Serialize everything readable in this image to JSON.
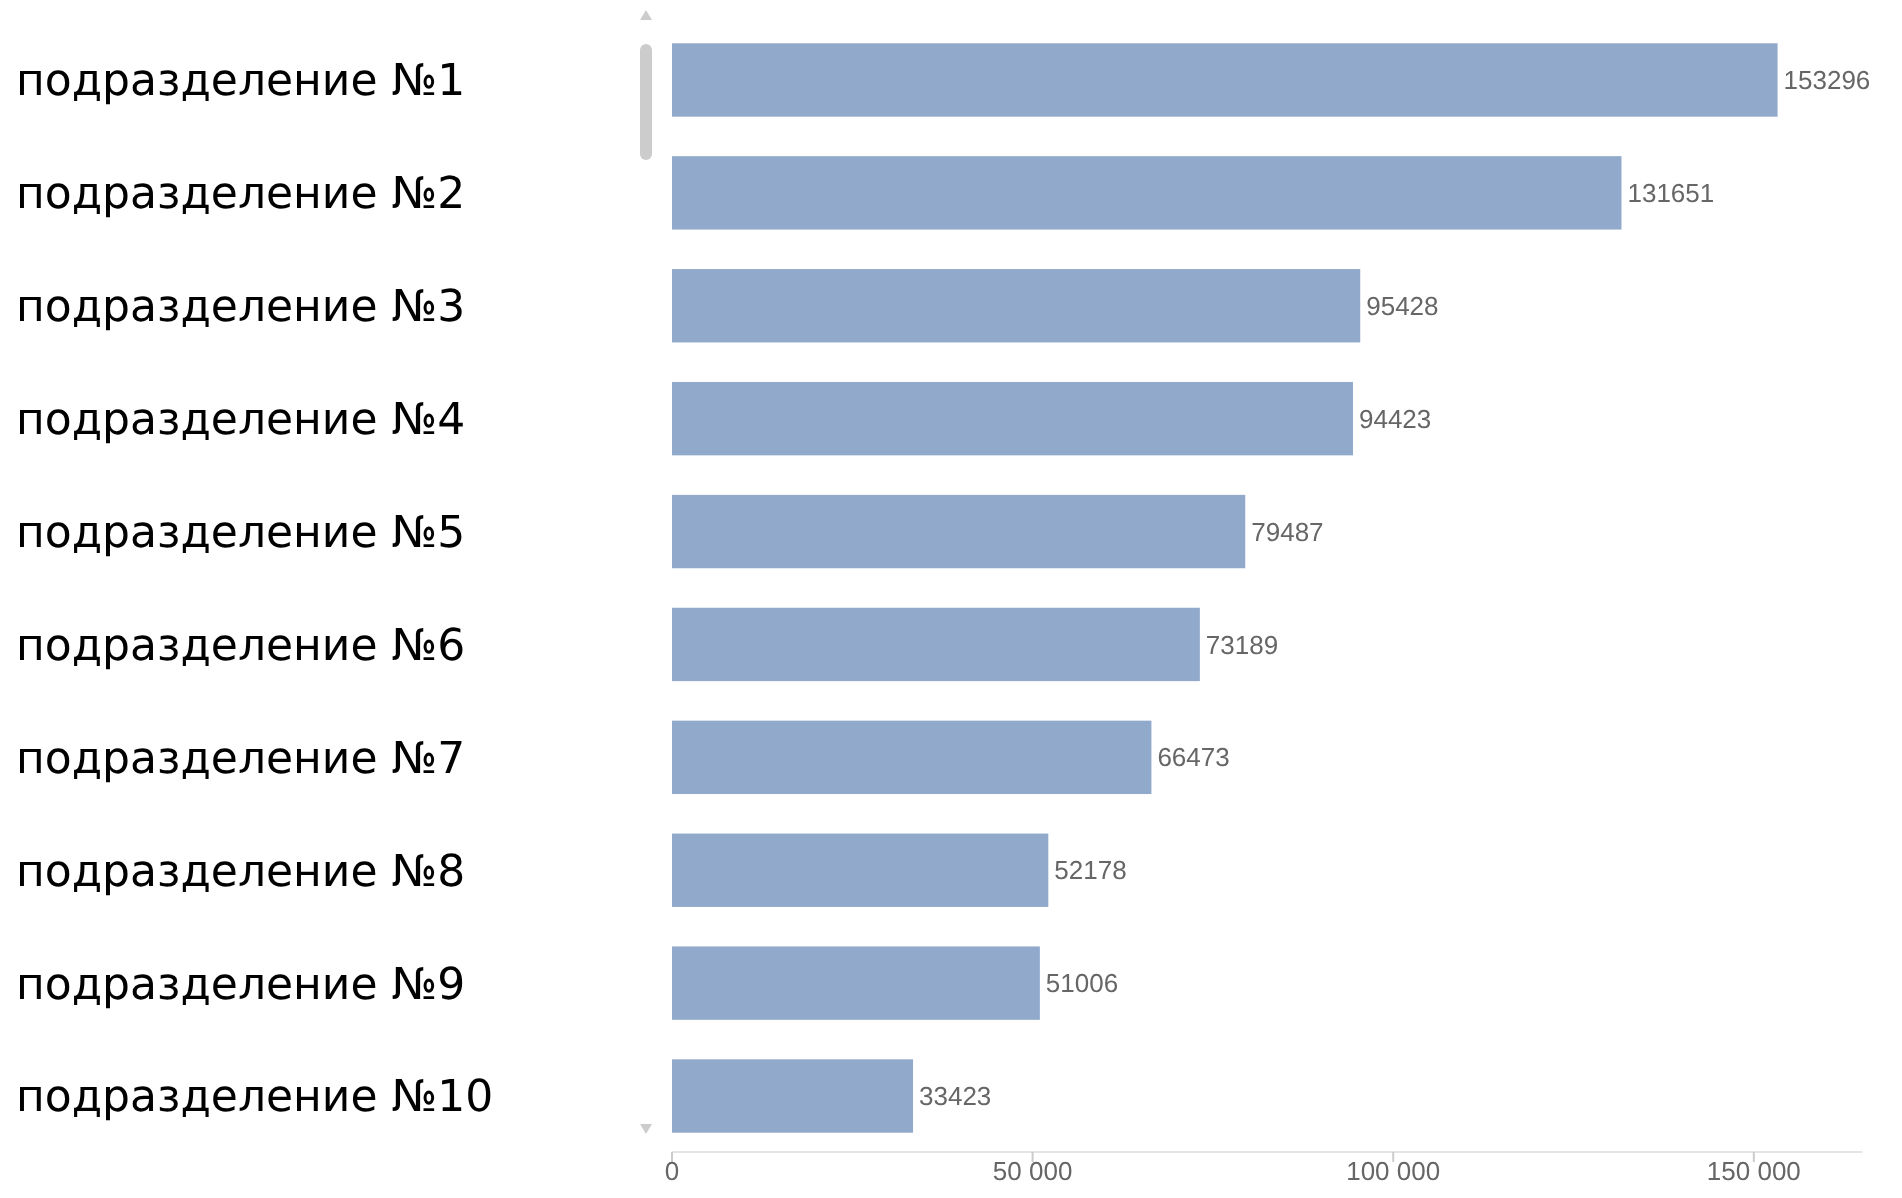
{
  "chart_data": {
    "type": "bar",
    "orientation": "horizontal",
    "categories": [
      "подразделение №1",
      "подразделение №2",
      "подразделение №3",
      "подразделение №4",
      "подразделение №5",
      "подразделение №6",
      "подразделение №7",
      "подразделение №8",
      "подразделение №9",
      "подразделение №10"
    ],
    "values": [
      153296,
      131651,
      95428,
      94423,
      79487,
      73189,
      66473,
      52178,
      51006,
      33423
    ],
    "color": "#91a9cb",
    "data_labels": true,
    "grid": false,
    "xlim": [
      0,
      165000
    ],
    "xticks": [
      0,
      {
        "value": 50000,
        "label": "50 000"
      },
      {
        "value": 100000,
        "label": "100 000"
      },
      {
        "value": 150000,
        "label": "150 000"
      }
    ]
  }
}
